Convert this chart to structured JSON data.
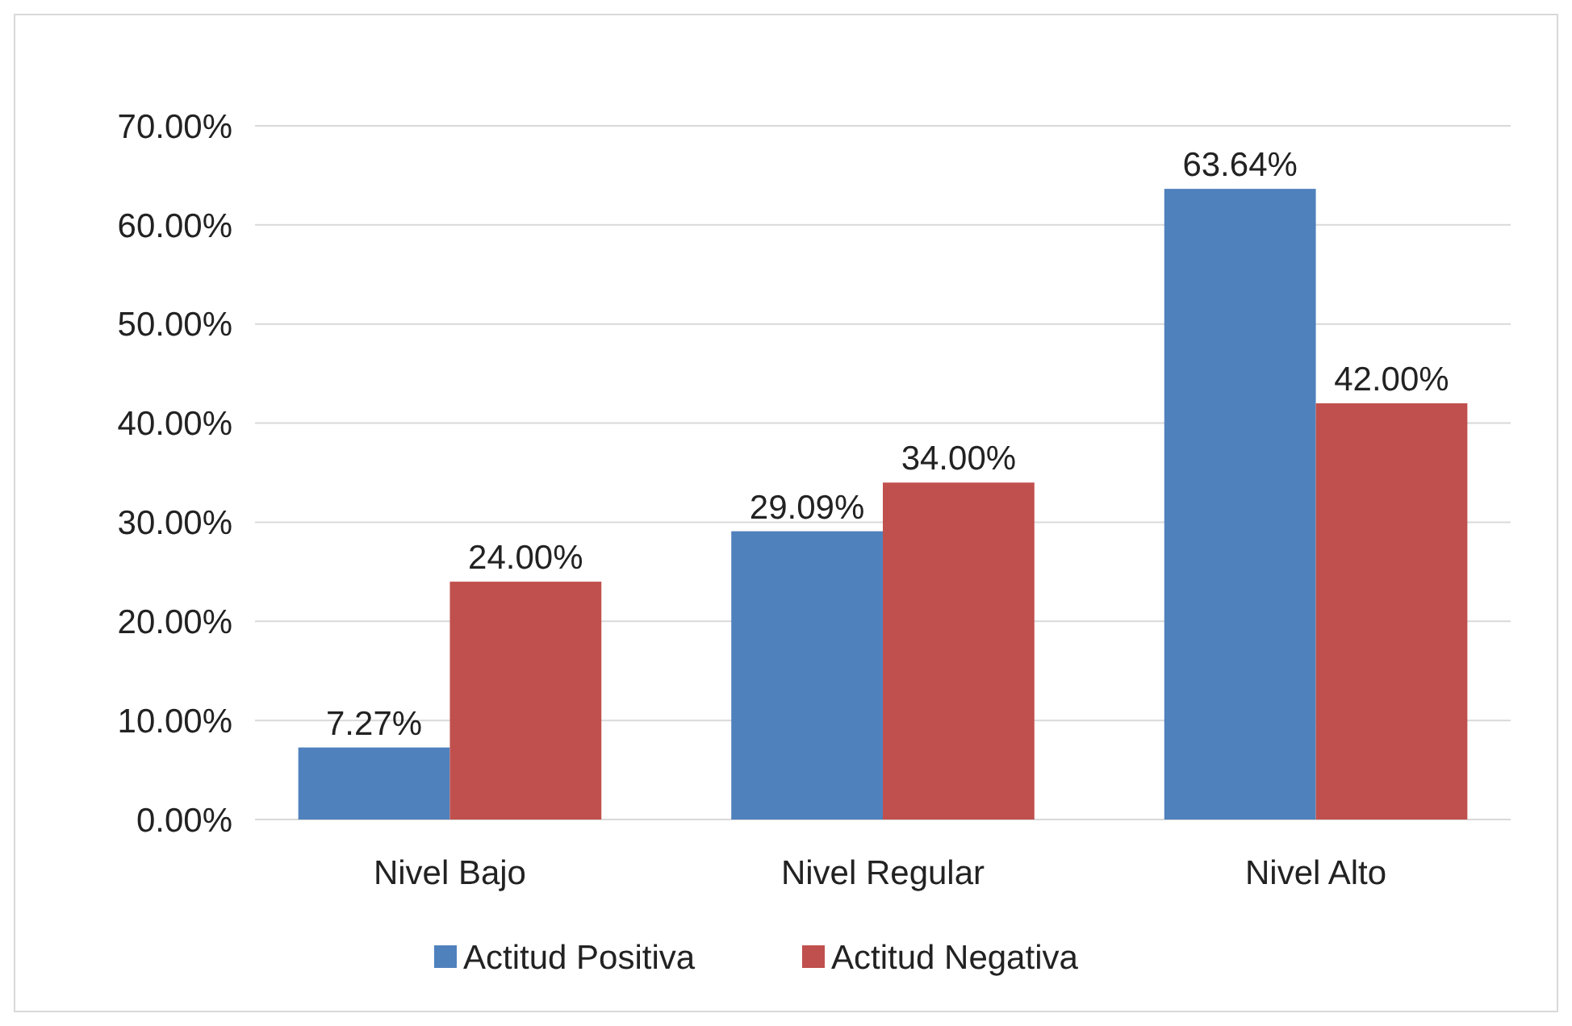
{
  "chart_data": {
    "type": "bar",
    "categories": [
      "Nivel Bajo",
      "Nivel Regular",
      "Nivel Alto"
    ],
    "series": [
      {
        "name": "Actitud Positiva",
        "color": "#4f81bd",
        "values": [
          7.27,
          29.09,
          63.64
        ],
        "value_labels": [
          "7.27%",
          "29.09%",
          "63.64%"
        ]
      },
      {
        "name": "Actitud Negativa",
        "color": "#c0504d",
        "values": [
          24,
          34,
          42
        ],
        "value_labels": [
          "24.00%",
          "34.00%",
          "42.00%"
        ]
      }
    ],
    "ylim": [
      0,
      70
    ],
    "yticks": [
      {
        "value": 0,
        "label": "0.00%"
      },
      {
        "value": 10,
        "label": "10.00%"
      },
      {
        "value": 20,
        "label": "20.00%"
      },
      {
        "value": 30,
        "label": "30.00%"
      },
      {
        "value": 40,
        "label": "40.00%"
      },
      {
        "value": 50,
        "label": "50.00%"
      },
      {
        "value": 60,
        "label": "60.00%"
      },
      {
        "value": 70,
        "label": "70.00%"
      }
    ],
    "grid": true,
    "legend": "bottom"
  }
}
